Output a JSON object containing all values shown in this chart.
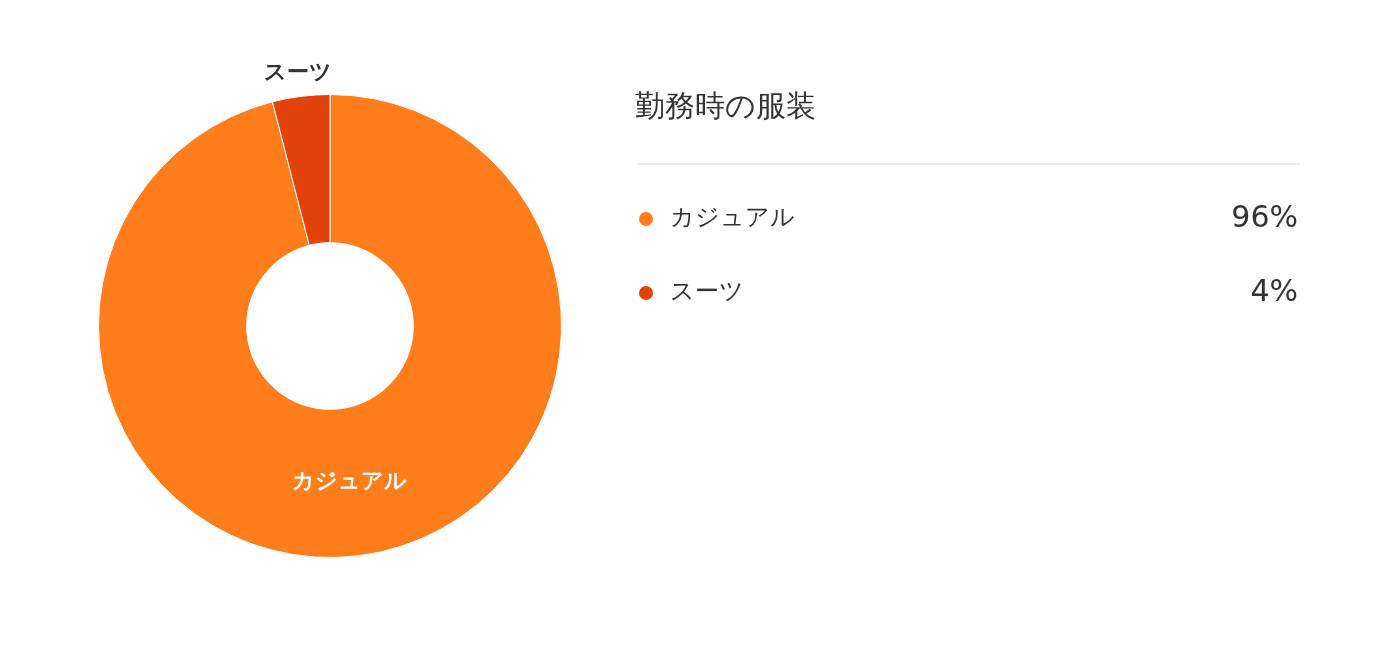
{
  "chart_data": {
    "type": "donut",
    "title": "勤務時の服装",
    "categories": [
      "カジュアル",
      "スーツ"
    ],
    "values": [
      96,
      4
    ],
    "colors": [
      "#ff7d1a",
      "#e2430a"
    ],
    "value_labels": [
      "96%",
      "4%"
    ],
    "legend": "right"
  }
}
